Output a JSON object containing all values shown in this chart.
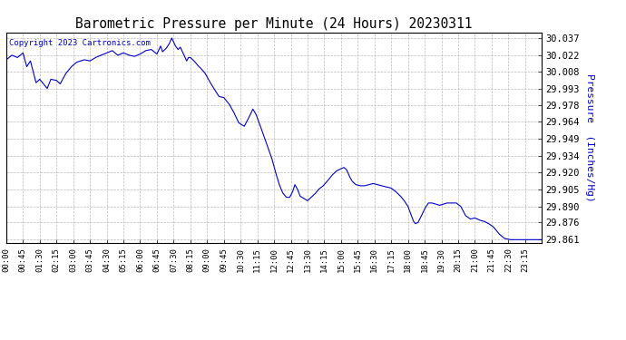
{
  "title": "Barometric Pressure per Minute (24 Hours) 20230311",
  "ylabel": "Pressure  (Inches/Hg)",
  "copyright_text": "Copyright 2023 Cartronics.com",
  "line_color": "#0000cc",
  "background_color": "#ffffff",
  "grid_color": "#aaaaaa",
  "ylabel_color": "#0000cc",
  "copyright_color": "#0000cc",
  "ylim_min": 29.858,
  "ylim_max": 30.042,
  "yticks": [
    30.037,
    30.022,
    30.008,
    29.993,
    29.978,
    29.964,
    29.949,
    29.934,
    29.92,
    29.905,
    29.89,
    29.876,
    29.861
  ],
  "xtick_labels": [
    "00:00",
    "00:45",
    "01:30",
    "02:15",
    "03:00",
    "03:45",
    "04:30",
    "05:15",
    "06:00",
    "06:45",
    "07:30",
    "08:15",
    "09:00",
    "09:45",
    "10:30",
    "11:15",
    "12:00",
    "12:45",
    "13:30",
    "14:15",
    "15:00",
    "15:45",
    "16:30",
    "17:15",
    "18:00",
    "18:45",
    "19:30",
    "20:15",
    "21:00",
    "21:45",
    "22:30",
    "23:15"
  ]
}
